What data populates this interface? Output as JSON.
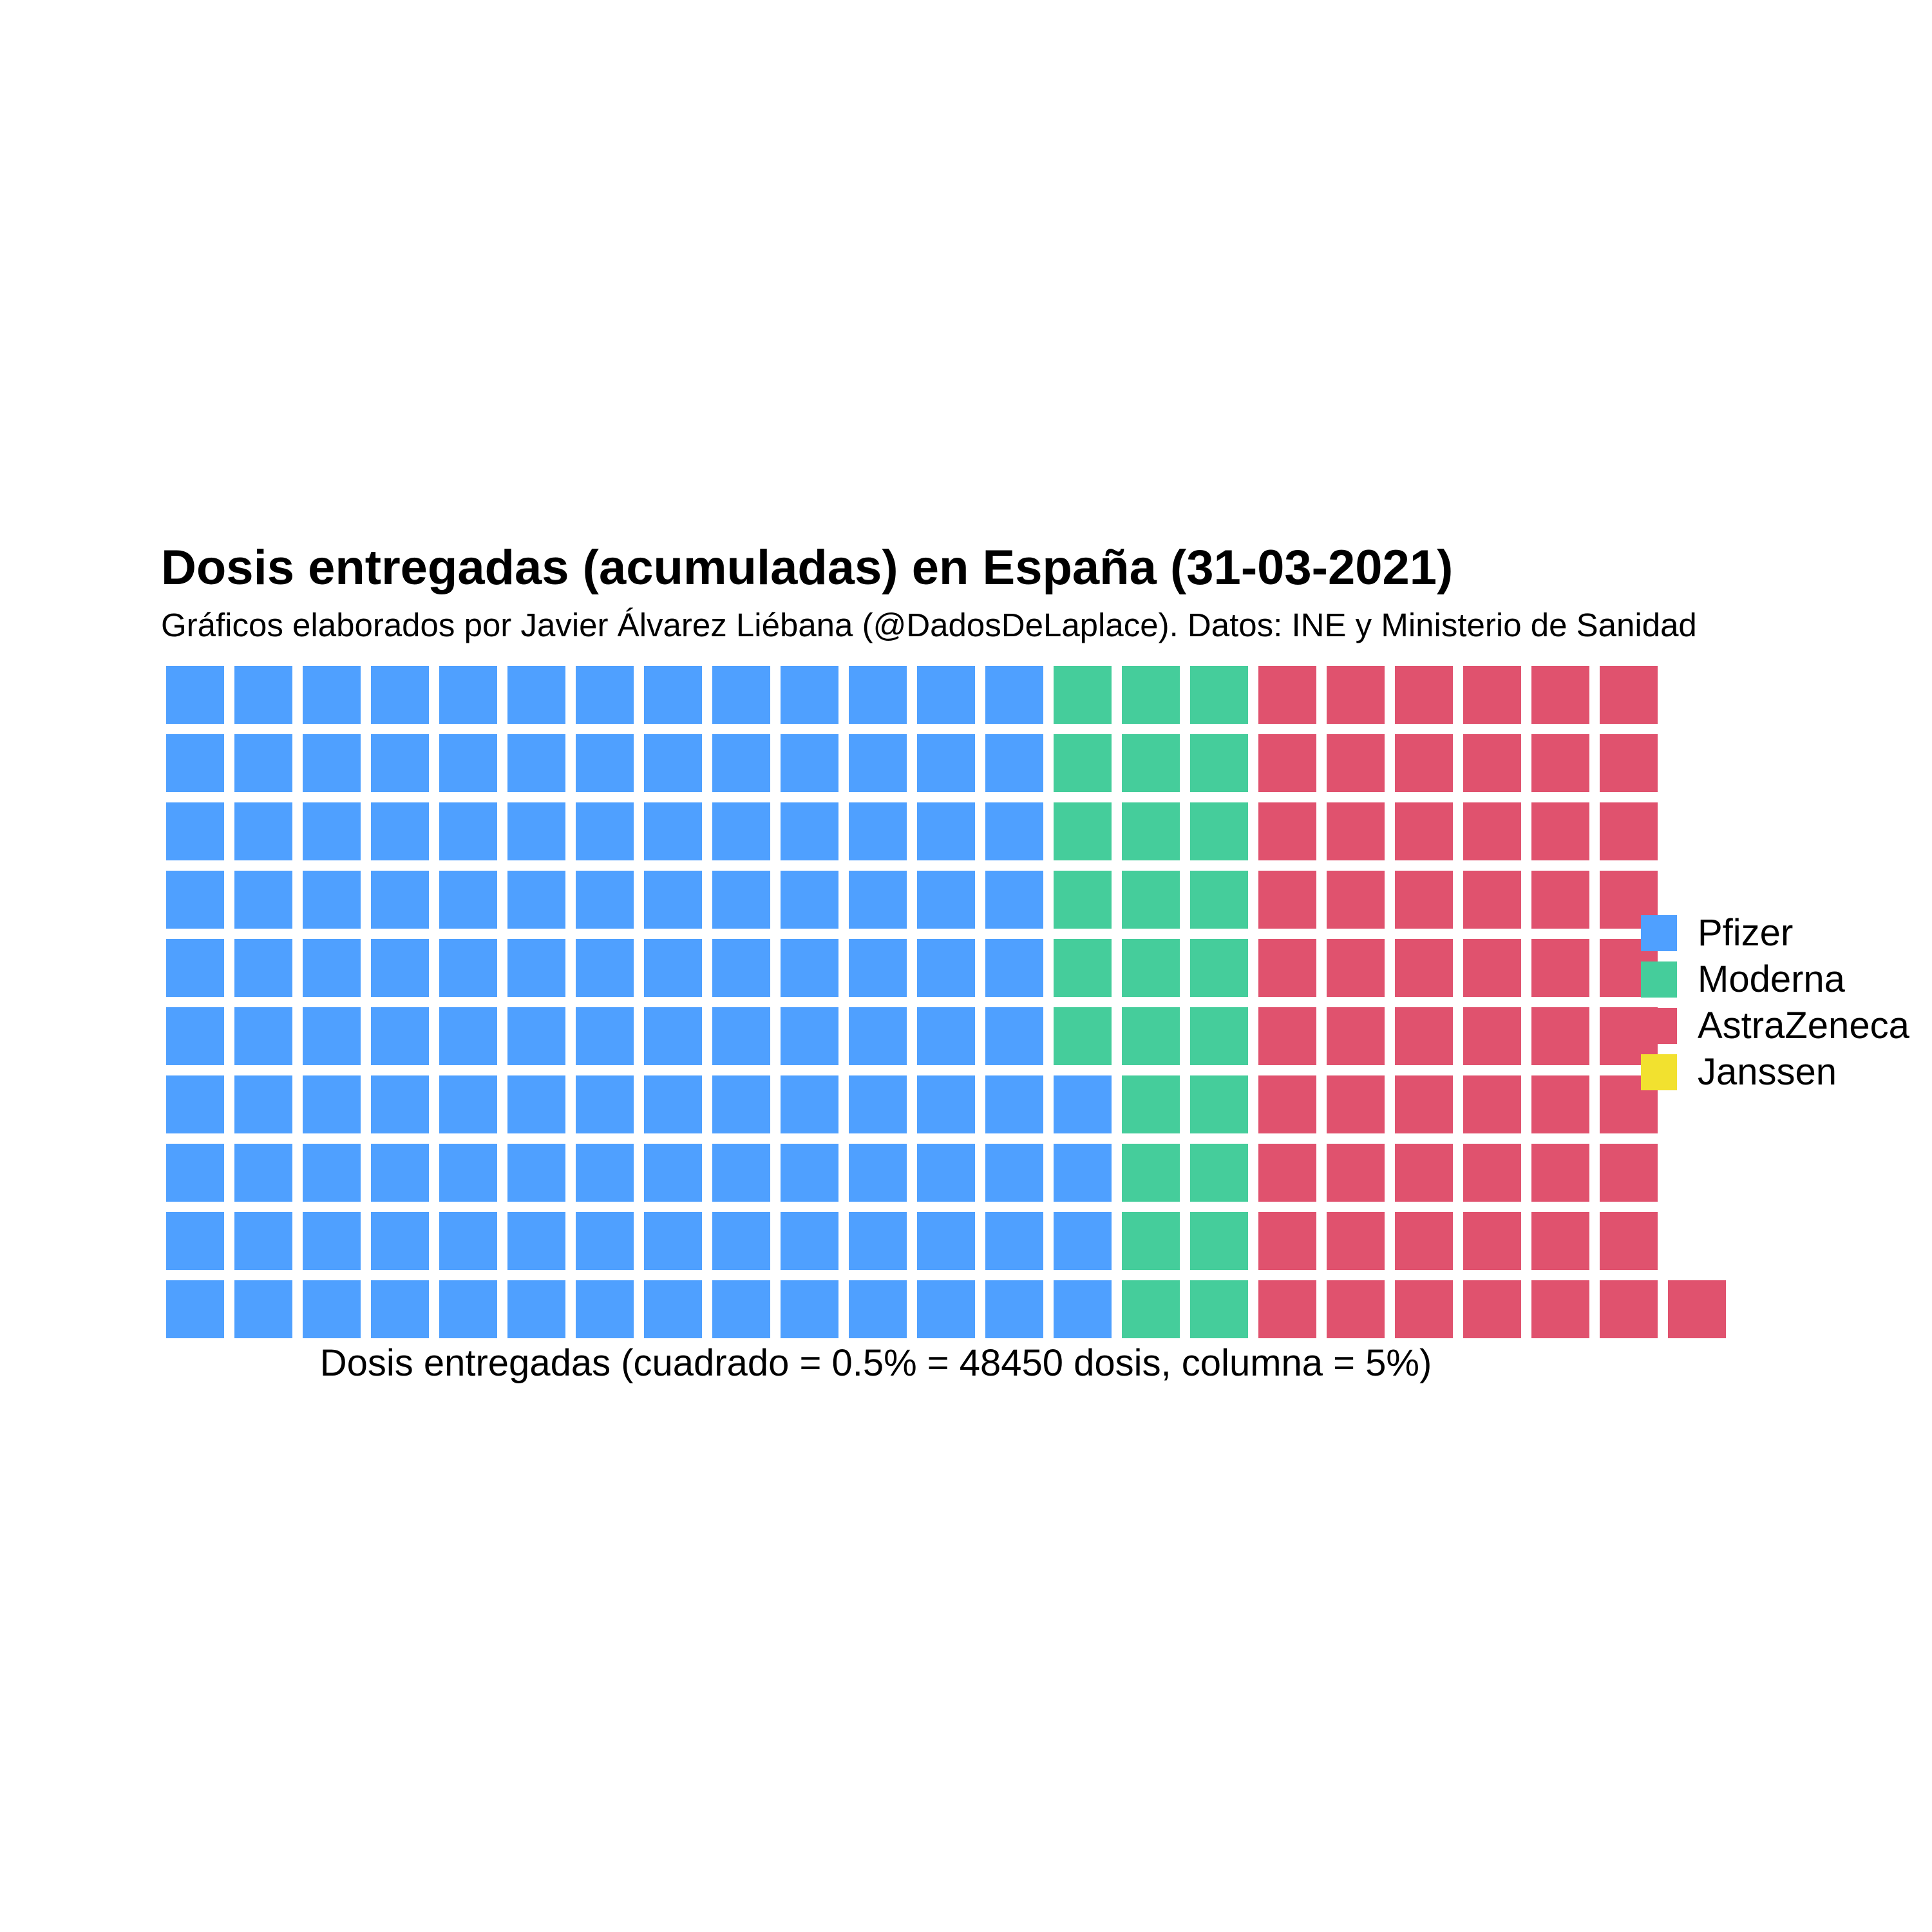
{
  "chart_data": {
    "type": "waffle",
    "title": "Dosis entregadas (acumuladas) en España (31-03-2021)",
    "subtitle": "Gráficos elaborados por Javier Álvarez Liébana (@DadosDeLaplace). Datos: INE y Ministerio de Sanidad",
    "xlabel": "Dosis entregadas (cuadrado = 0.5% = 48450 dosis, columna = 5%)",
    "rows_per_column": 10,
    "fill_order": "column-wise, bottom to top",
    "square_percent": 0.5,
    "square_doses": 48450,
    "column_percent": 5,
    "categories": [
      "Pfizer",
      "Moderna",
      "AstraZeneca",
      "Janssen"
    ],
    "values": [
      134,
      26,
      61,
      0
    ],
    "colors": [
      "#4FA0FF",
      "#45CD9B",
      "#E0526E",
      "#F2E12F"
    ],
    "legend_position": "right"
  }
}
